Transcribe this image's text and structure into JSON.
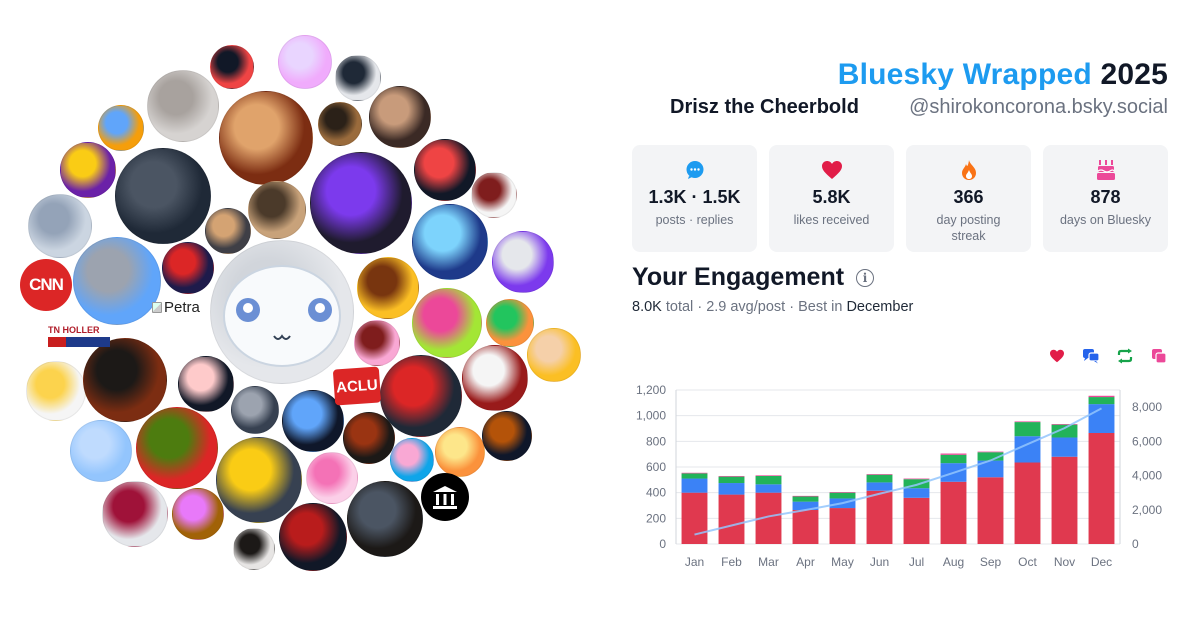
{
  "header": {
    "brand": "Bluesky Wrapped",
    "year": "2025",
    "display_name": "Drisz the Cheerbold",
    "handle": "@shirokoncorona.bsky.social"
  },
  "stats": [
    {
      "icon": "chat-bubble-icon",
      "value": "1.3K · 1.5K",
      "label": "posts · replies",
      "color": "#1d9bf0"
    },
    {
      "icon": "heart-icon",
      "value": "5.8K",
      "label": "likes received",
      "color": "#e11d48"
    },
    {
      "icon": "flame-icon",
      "value": "366",
      "label": "day posting streak",
      "color": "#f97316"
    },
    {
      "icon": "cake-icon",
      "value": "878",
      "label": "days on Bluesky",
      "color": "#ec4899"
    }
  ],
  "engagement": {
    "title": "Your Engagement",
    "total": "8.0K",
    "total_word": "total",
    "avg": "2.9 avg/post",
    "best_prefix": "Best in",
    "best_month": "December",
    "legend_icons": [
      {
        "name": "likes-legend-icon",
        "color": "#e11d48"
      },
      {
        "name": "replies-legend-icon",
        "color": "#2563eb"
      },
      {
        "name": "reposts-legend-icon",
        "color": "#16a34a"
      },
      {
        "name": "quotes-legend-icon",
        "color": "#ec4899"
      }
    ]
  },
  "avatar_cloud": {
    "logo_texts": [
      "CNN",
      "ACLU",
      "TN HOLLER"
    ],
    "broken_image_alt": "Petra"
  },
  "chart_data": {
    "type": "bar",
    "categories": [
      "Jan",
      "Feb",
      "Mar",
      "Apr",
      "May",
      "Jun",
      "Jul",
      "Aug",
      "Sep",
      "Oct",
      "Nov",
      "Dec"
    ],
    "series": [
      {
        "name": "likes",
        "color": "#e0394f",
        "values": [
          400,
          385,
          400,
          265,
          280,
          415,
          360,
          485,
          520,
          635,
          680,
          865
        ]
      },
      {
        "name": "replies",
        "color": "#3b82f6",
        "values": [
          110,
          90,
          65,
          65,
          75,
          65,
          75,
          145,
          130,
          205,
          150,
          225
        ]
      },
      {
        "name": "reposts",
        "color": "#22b35a",
        "values": [
          40,
          50,
          65,
          40,
          45,
          60,
          70,
          65,
          65,
          110,
          100,
          55
        ]
      },
      {
        "name": "quotes",
        "color": "#ec4899",
        "values": [
          5,
          5,
          5,
          5,
          5,
          5,
          5,
          10,
          5,
          5,
          5,
          10
        ]
      }
    ],
    "cumulative": {
      "name": "cumulative",
      "color": "#93c5fd",
      "values": [
        550,
        1080,
        1610,
        1985,
        2390,
        2935,
        3455,
        4160,
        4880,
        5835,
        6770,
        7925
      ]
    },
    "yticks_left": [
      "0",
      "200",
      "400",
      "600",
      "800",
      "1,000",
      "1,200"
    ],
    "yticks_right": [
      "0",
      "2,000",
      "4,000",
      "6,000",
      "8,000"
    ],
    "ylim_left": [
      0,
      1200
    ],
    "ylim_right": [
      0,
      9000
    ],
    "grid": true
  }
}
